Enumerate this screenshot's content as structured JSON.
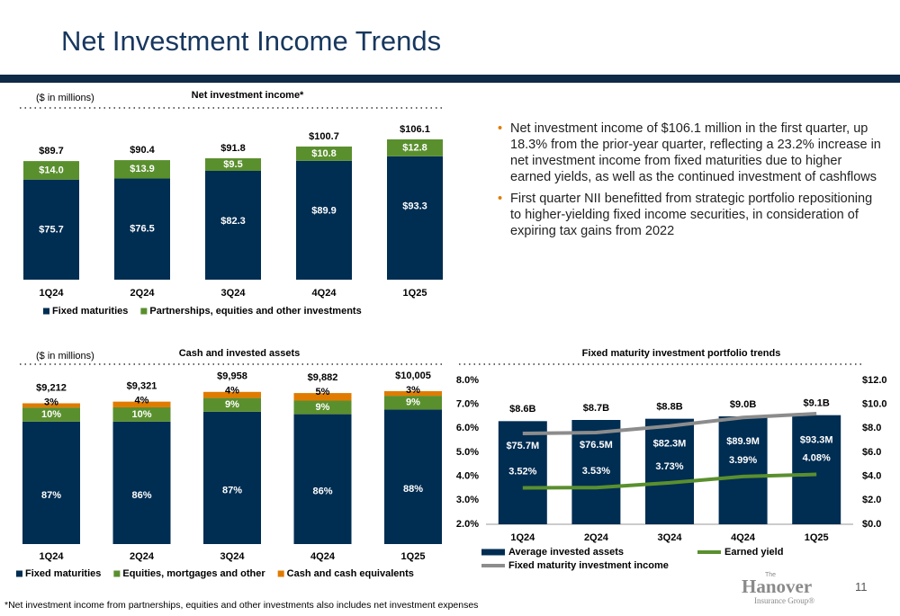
{
  "title": "Net Investment Income Trends",
  "bullets": [
    "Net investment income of $106.1 million in the first quarter, up 18.3% from the prior-year quarter, reflecting a 23.2% increase in net investment income from fixed maturities due to higher earned yields, as well as the continued investment of cashflows",
    "First quarter NII benefitted from strategic portfolio repositioning to higher-yielding fixed income securities, in consideration of expiring tax gains from 2022"
  ],
  "footnote": "*Net investment income from partnerships, equities and other investments also includes net investment expenses",
  "page_number": "11",
  "logo": {
    "top": "The",
    "name": "Hanover",
    "sub": "Insurance Group®"
  },
  "chart_data": [
    {
      "type": "stacked_bar",
      "title": "Net investment income*",
      "subtitle": "($ in millions)",
      "categories": [
        "1Q24",
        "2Q24",
        "3Q24",
        "4Q24",
        "1Q25"
      ],
      "series": [
        {
          "name": "Fixed maturities",
          "color": "#002d52",
          "values": [
            75.7,
            76.5,
            82.3,
            89.9,
            93.3
          ],
          "value_labels": [
            "$75.7",
            "$76.5",
            "$82.3",
            "$89.9",
            "$93.3"
          ]
        },
        {
          "name": "Partnerships, equities and other investments",
          "color": "#5a8f2e",
          "values": [
            14.0,
            13.9,
            9.5,
            10.8,
            12.8
          ],
          "value_labels": [
            "$14.0",
            "$13.9",
            "$9.5",
            "$10.8",
            "$12.8"
          ]
        }
      ],
      "totals": [
        89.7,
        90.4,
        91.8,
        100.7,
        106.1
      ],
      "total_labels": [
        "$89.7",
        "$90.4",
        "$91.8",
        "$100.7",
        "$106.1"
      ]
    },
    {
      "type": "stacked_percent_bar",
      "title": "Cash and invested assets",
      "subtitle": "($ in millions)",
      "categories": [
        "1Q24",
        "2Q24",
        "3Q24",
        "4Q24",
        "1Q25"
      ],
      "series": [
        {
          "name": "Fixed maturities",
          "color": "#002d52",
          "values": [
            87,
            86,
            87,
            86,
            88
          ],
          "value_labels": [
            "87%",
            "86%",
            "87%",
            "86%",
            "88%"
          ]
        },
        {
          "name": "Equities, mortgages and other",
          "color": "#5a8f2e",
          "values": [
            10,
            10,
            9,
            9,
            9
          ],
          "value_labels": [
            "10%",
            "10%",
            "9%",
            "9%",
            "9%"
          ]
        },
        {
          "name": "Cash and cash equivalents",
          "color": "#e07b00",
          "values": [
            3,
            4,
            4,
            5,
            3
          ],
          "value_labels": [
            "3%",
            "4%",
            "4%",
            "5%",
            "3%"
          ]
        }
      ],
      "totals": [
        9212,
        9321,
        9958,
        9882,
        10005
      ],
      "total_labels": [
        "$9,212",
        "$9,321",
        "$9,958",
        "$9,882",
        "$10,005"
      ]
    },
    {
      "type": "combo",
      "title": "Fixed maturity investment portfolio trends",
      "categories": [
        "1Q24",
        "2Q24",
        "3Q24",
        "4Q24",
        "1Q25"
      ],
      "series": [
        {
          "name": "Average invested assets",
          "type": "bar",
          "axis": "y2",
          "color": "#002d52",
          "values": [
            8.6,
            8.7,
            8.8,
            9.0,
            9.1
          ],
          "value_labels": [
            "$8.6B",
            "$8.7B",
            "$8.8B",
            "$9.0B",
            "$9.1B"
          ]
        },
        {
          "name": "Earned yield",
          "type": "line",
          "color": "#5a8f2e",
          "values": [
            3.52,
            3.53,
            3.73,
            3.99,
            4.08
          ],
          "value_labels": [
            "3.52%",
            "3.53%",
            "3.73%",
            "3.99%",
            "4.08%"
          ]
        },
        {
          "name": "Fixed maturity investment income",
          "type": "line",
          "color": "#8c8c8c",
          "values": [
            75.7,
            76.5,
            82.3,
            89.9,
            93.3
          ],
          "value_labels": [
            "$75.7M",
            "$76.5M",
            "$82.3M",
            "$89.9M",
            "$93.3M"
          ]
        }
      ],
      "ylim": [
        2,
        8
      ],
      "yticks": [
        {
          "value": 2,
          "label": "2.0%"
        },
        {
          "value": 3,
          "label": "3.0%"
        },
        {
          "value": 4,
          "label": "4.0%"
        },
        {
          "value": 5,
          "label": "5.0%"
        },
        {
          "value": 6,
          "label": "6.0%"
        },
        {
          "value": 7,
          "label": "7.0%"
        },
        {
          "value": 8,
          "label": "8.0%"
        }
      ],
      "y2lim": [
        0,
        12
      ],
      "y2ticks": [
        {
          "value": 0,
          "label": "$0.0"
        },
        {
          "value": 2,
          "label": "$2.0"
        },
        {
          "value": 4,
          "label": "$4.0"
        },
        {
          "value": 6,
          "label": "$6.0"
        },
        {
          "value": 8,
          "label": "$8.0"
        },
        {
          "value": 10,
          "label": "$10.0"
        },
        {
          "value": 12,
          "label": "$12.0"
        }
      ]
    }
  ]
}
